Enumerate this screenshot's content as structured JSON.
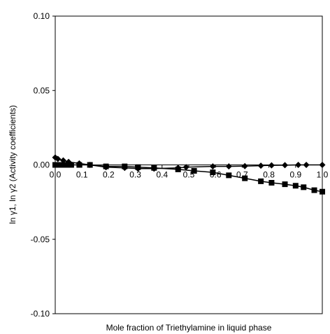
{
  "chart_data": {
    "type": "line",
    "title": "",
    "xlabel": "Mole fraction of Triethylamine in liquid phase",
    "ylabel": "ln γ1, ln γ2 (Activity coefficients)",
    "xlim": [
      0,
      1
    ],
    "ylim": [
      -0.1,
      0.1
    ],
    "xticks": [
      "0.0",
      "0.1",
      "0.2",
      "0.3",
      "0.4",
      "0.5",
      "0.6",
      "0.7",
      "0.8",
      "0.9",
      "1.0"
    ],
    "yticks": [
      "0.10",
      "0.05",
      "0.00",
      "-0.05",
      "-0.10"
    ],
    "grid": false,
    "legend": "none",
    "series": [
      {
        "marker": "diamond",
        "color": "#000000",
        "x": [
          0.0,
          0.01,
          0.03,
          0.05,
          0.09,
          0.13,
          0.19,
          0.26,
          0.31,
          0.37,
          0.46,
          0.49,
          0.59,
          0.65,
          0.71,
          0.77,
          0.81,
          0.86,
          0.91,
          0.94,
          1.0
        ],
        "y": [
          0.005,
          0.004,
          0.003,
          0.002,
          0.001,
          0.0,
          -0.0015,
          -0.002,
          -0.0025,
          -0.0025,
          -0.002,
          -0.0015,
          -0.001,
          -0.001,
          -0.0008,
          -0.0005,
          -0.0003,
          -0.0002,
          0.0,
          0.0,
          0.0
        ]
      },
      {
        "marker": "square",
        "color": "#000000",
        "x": [
          0.0,
          0.01,
          0.02,
          0.04,
          0.06,
          0.09,
          0.13,
          0.19,
          0.26,
          0.31,
          0.37,
          0.46,
          0.52,
          0.59,
          0.65,
          0.71,
          0.77,
          0.81,
          0.86,
          0.9,
          0.93,
          0.97,
          1.0
        ],
        "y": [
          0.0,
          0.0,
          0.0,
          0.0,
          0.0,
          0.0,
          0.0,
          -0.001,
          -0.001,
          -0.0015,
          -0.002,
          -0.003,
          -0.004,
          -0.005,
          -0.007,
          -0.009,
          -0.011,
          -0.012,
          -0.013,
          -0.014,
          -0.015,
          -0.017,
          -0.018
        ]
      }
    ]
  }
}
